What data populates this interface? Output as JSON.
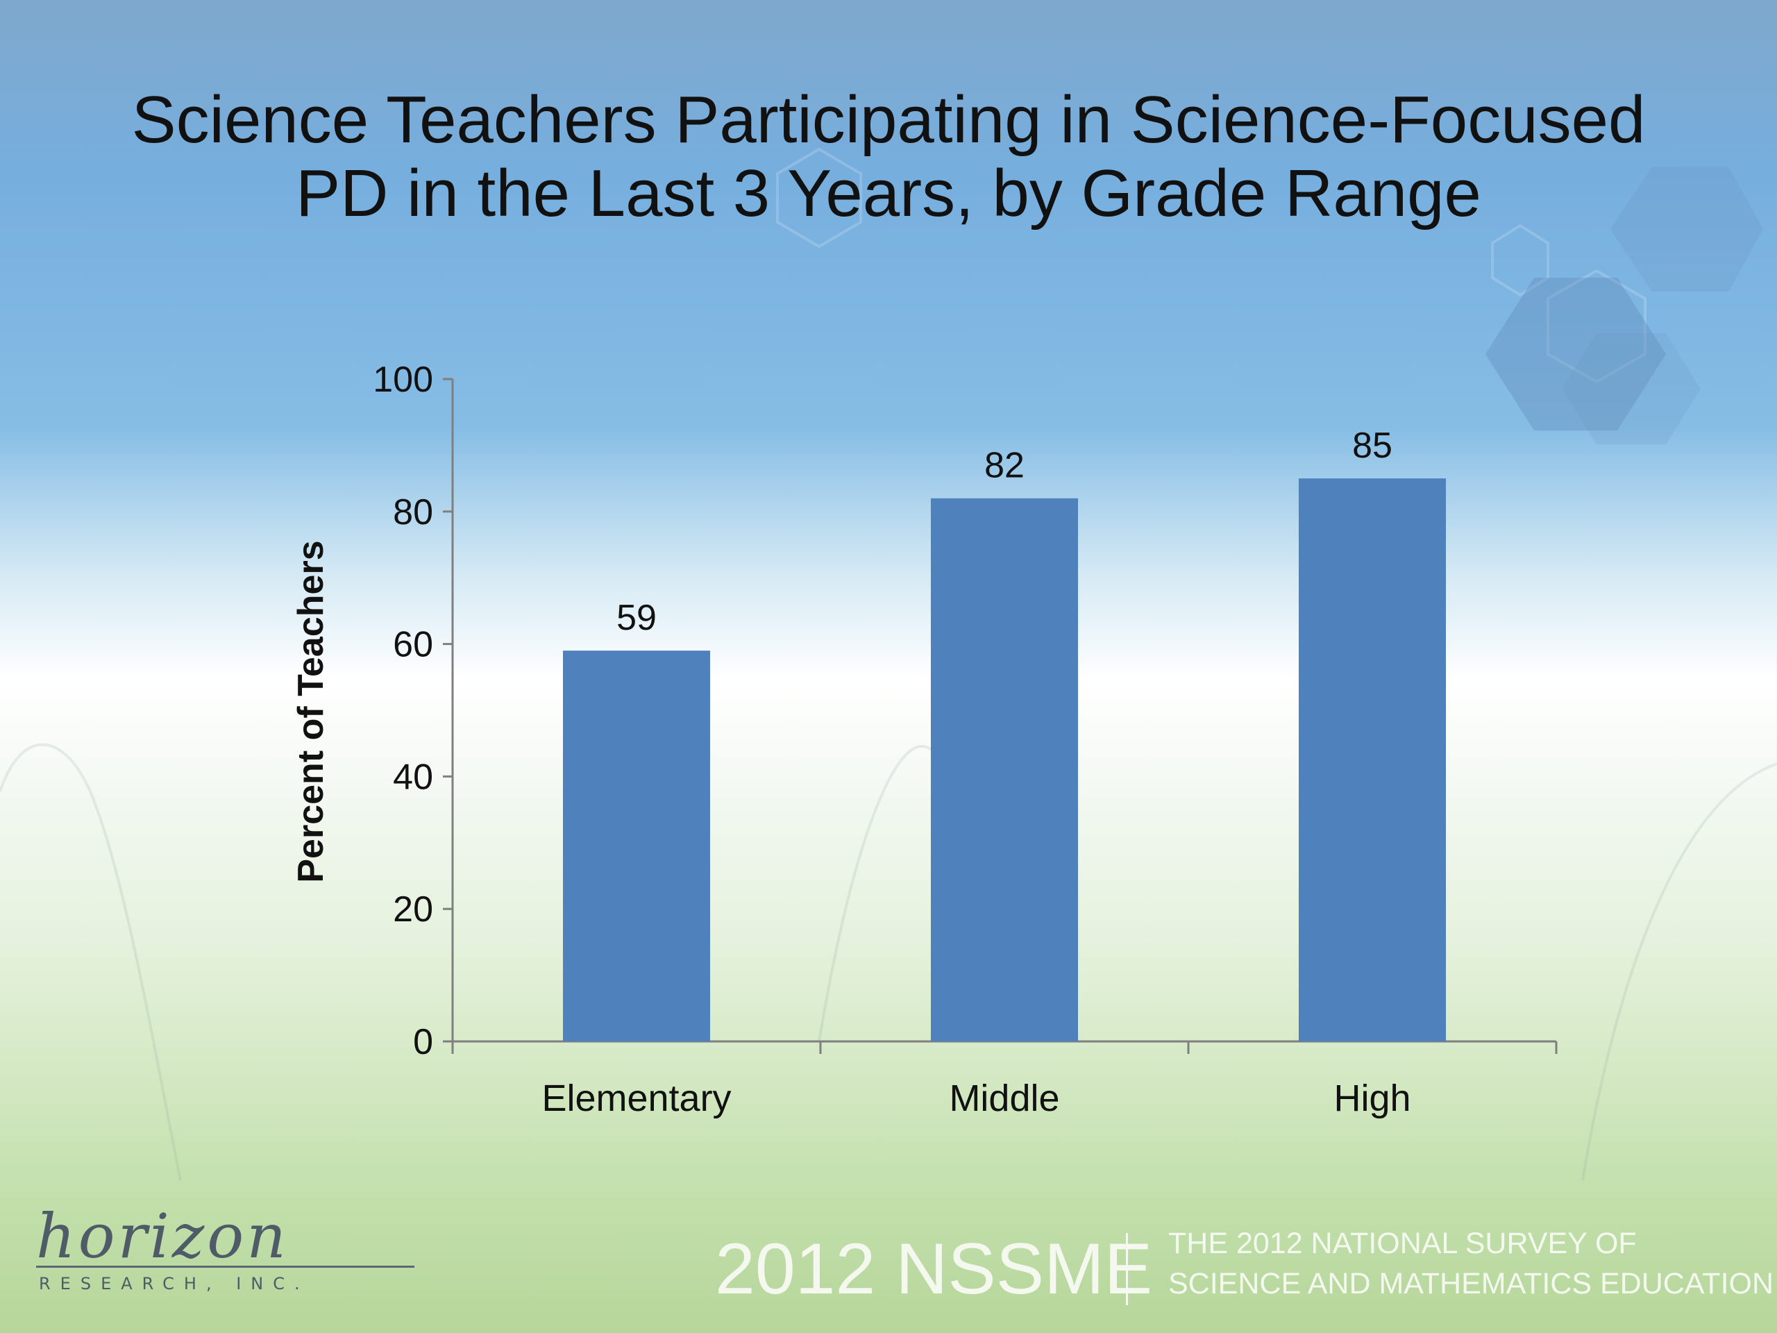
{
  "slide": {
    "title_lines": [
      "Science Teachers Participating in Science-Focused",
      "PD in the Last 3 Years, by Grade Range"
    ]
  },
  "chart_data": {
    "type": "bar",
    "title": "Science Teachers Participating in Science-Focused PD in the Last 3 Years, by Grade Range",
    "categories": [
      "Elementary",
      "Middle",
      "High"
    ],
    "values": [
      59,
      82,
      85
    ],
    "data_labels": [
      "59",
      "82",
      "85"
    ],
    "xlabel": "",
    "ylabel": "Percent of Teachers",
    "ylim": [
      0,
      100
    ],
    "yticks": [
      0,
      20,
      40,
      60,
      80,
      100
    ],
    "grid": false,
    "legend": "none",
    "bar_color": "#4f81bd"
  },
  "footer": {
    "logo_script": "horizon",
    "logo_sub": "RESEARCH, INC.",
    "brand": "2012 NSSME",
    "subtitle_lines": [
      "THE 2012 NATIONAL SURVEY OF",
      "SCIENCE AND MATHEMATICS EDUCATION"
    ]
  }
}
